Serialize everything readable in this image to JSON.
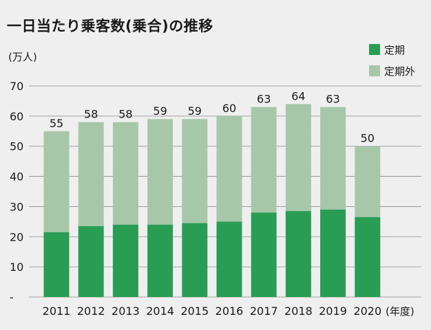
{
  "title": "一日当たり乗客数(乗合)の推移",
  "colors": {
    "commuter": "#2a9d55",
    "non_commuter": "#a6c7a8",
    "background": "#efefef",
    "grid": "#8a8a8a"
  },
  "chart_data": {
    "type": "bar",
    "stacked": true,
    "title": "一日当たり乗客数(乗合)の推移",
    "ylabel": "(万人)",
    "xlabel": "(年度)",
    "ylim": [
      0,
      70
    ],
    "yticks": [
      "-",
      "10",
      "20",
      "30",
      "40",
      "50",
      "60",
      "70"
    ],
    "grid": true,
    "legend_position": "top-right",
    "categories": [
      "2011",
      "2012",
      "2013",
      "2014",
      "2015",
      "2016",
      "2017",
      "2018",
      "2019",
      "2020"
    ],
    "series": [
      {
        "name": "定期",
        "values": [
          21.5,
          23.5,
          24,
          24,
          24.5,
          25,
          28,
          28.5,
          29,
          26.5
        ]
      },
      {
        "name": "定期外",
        "values": [
          33.5,
          34.5,
          34,
          35,
          34.5,
          35,
          35,
          35.5,
          34,
          23.5
        ]
      }
    ],
    "totals": [
      "55",
      "58",
      "58",
      "59",
      "59",
      "60",
      "63",
      "64",
      "63",
      "50"
    ]
  }
}
